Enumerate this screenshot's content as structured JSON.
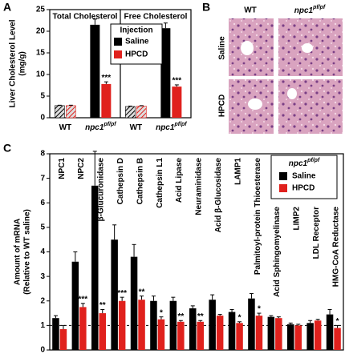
{
  "chart_data": [
    {
      "type": "bar",
      "label": "A",
      "ylabel": [
        "Liver Cholesterol Level",
        "(mg/g)"
      ],
      "ylim": [
        0,
        25
      ],
      "yticks": [
        0,
        5,
        10,
        15,
        20,
        25
      ],
      "categories": [
        "WT",
        "npc1"
      ],
      "category_superscripts": [
        null,
        "pf/pf"
      ],
      "hatched": [
        true,
        false
      ],
      "legend_title": "Injection",
      "series": [
        {
          "name": "Saline",
          "color": "#000000"
        },
        {
          "name": "HPCD",
          "color": "#e0211d"
        }
      ],
      "panels": [
        {
          "title": "Total Cholesterol",
          "values": [
            [
              2.8,
              21.5
            ],
            [
              2.8,
              7.8
            ]
          ],
          "errors": [
            [
              0.1,
              1.3
            ],
            [
              0.1,
              0.5
            ]
          ],
          "annotations": [
            null,
            "***"
          ]
        },
        {
          "title": "Free Cholesterol",
          "values": [
            [
              2.6,
              20.7
            ],
            [
              2.7,
              7.2
            ]
          ],
          "errors": [
            [
              0.1,
              1.2
            ],
            [
              0.1,
              0.4
            ]
          ],
          "annotations": [
            null,
            "***"
          ]
        }
      ]
    },
    {
      "type": "bar",
      "label": "C",
      "ylabel": [
        "Amount of mRNA",
        "(Relative to WT saline)"
      ],
      "ylim": [
        0,
        8
      ],
      "yticks": [
        0,
        1,
        2,
        3,
        4,
        5,
        6,
        7,
        8
      ],
      "reference_line": 1,
      "legend_title": "npc1",
      "legend_title_superscript": "pf/pf",
      "categories": [
        "NPC1",
        "NPC2",
        "β-Glucuronidase",
        "Cathepsin D",
        "Cathepsin B",
        "Cathepsin L1",
        "Acid Lipase",
        "Neuraminidase",
        "Acid β-Glucosidase",
        "LAMP1",
        "Palmitoyl-protein Thioesterase",
        "Acid Sphingomyelinase",
        "LIMP2",
        "LDL Receptor",
        "HMG-CoA Reductase"
      ],
      "annotations": [
        null,
        "***",
        "**",
        "***",
        "**",
        "*",
        "**",
        "**",
        null,
        "*",
        "*",
        null,
        null,
        null,
        "*"
      ],
      "series": [
        {
          "name": "Saline",
          "color": "#000000",
          "values": [
            1.3,
            3.6,
            6.7,
            4.5,
            3.8,
            2.0,
            2.0,
            1.7,
            2.05,
            1.55,
            2.1,
            1.35,
            1.05,
            1.1,
            1.45
          ],
          "errors": [
            0.1,
            0.4,
            1.4,
            0.6,
            0.5,
            0.2,
            0.15,
            0.1,
            0.2,
            0.1,
            0.2,
            0.05,
            0.05,
            0.1,
            0.2
          ]
        },
        {
          "name": "HPCD",
          "color": "#e0211d",
          "values": [
            0.85,
            1.75,
            1.5,
            2.0,
            2.05,
            1.25,
            1.15,
            1.15,
            1.4,
            1.1,
            1.4,
            1.3,
            1.0,
            1.2,
            0.9
          ],
          "errors": [
            0.15,
            0.15,
            0.15,
            0.15,
            0.15,
            0.1,
            0.05,
            0.05,
            0.05,
            0.05,
            0.1,
            0.05,
            0.05,
            0.05,
            0.1
          ]
        }
      ]
    }
  ],
  "histology": {
    "label": "B",
    "column_labels": [
      "WT",
      "npc1"
    ],
    "column_superscripts": [
      null,
      "pf/pf"
    ],
    "row_labels": [
      "Saline",
      "HPCD"
    ]
  }
}
